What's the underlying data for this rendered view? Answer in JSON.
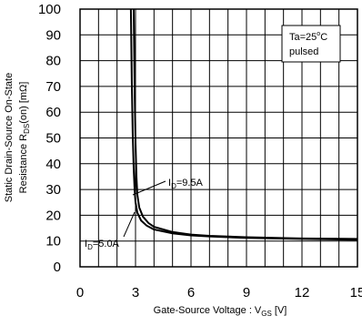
{
  "chart_data": {
    "type": "line",
    "xlabel": {
      "main": "Gate-Source Voltage : V",
      "sub": "GS",
      "unit": " [V]"
    },
    "ylabel": {
      "line1": "Static Drain-Source On-State",
      "line2_main": "Resistance   R",
      "line2_sub": "DS",
      "line2_rest": "(on) [mΩ]"
    },
    "xlim": [
      0,
      15
    ],
    "ylim": [
      0,
      100
    ],
    "x_ticks": [
      "0",
      "3",
      "6",
      "9",
      "12",
      "15"
    ],
    "y_ticks": [
      "0",
      "10",
      "20",
      "30",
      "40",
      "50",
      "60",
      "70",
      "80",
      "90",
      "100"
    ],
    "x_tick_values": [
      0,
      3,
      6,
      9,
      12,
      15
    ],
    "y_tick_values": [
      0,
      10,
      20,
      30,
      40,
      50,
      60,
      70,
      80,
      90,
      100
    ],
    "grid": true,
    "conditions": {
      "line1_main": "Ta=25",
      "line1_sup": "o",
      "line1_rest": "C",
      "line2": "pulsed"
    },
    "series": [
      {
        "points": [
          [
            2.75,
            100
          ],
          [
            2.8,
            72
          ],
          [
            2.85,
            52
          ],
          [
            2.9,
            38
          ],
          [
            2.95,
            30
          ],
          [
            3.0,
            25
          ],
          [
            3.1,
            21
          ],
          [
            3.3,
            18
          ],
          [
            3.6,
            16
          ],
          [
            4.0,
            14.5
          ],
          [
            5.0,
            13
          ],
          [
            6.0,
            12.2
          ],
          [
            7.0,
            11.8
          ],
          [
            9.0,
            11.2
          ],
          [
            12.0,
            10.8
          ],
          [
            15.0,
            10.5
          ]
        ],
        "label": {
          "main": "I",
          "sub": "D",
          "rest": "=9.5A"
        }
      },
      {
        "points": [
          [
            2.9,
            100
          ],
          [
            2.95,
            70
          ],
          [
            3.0,
            48
          ],
          [
            3.05,
            35
          ],
          [
            3.1,
            28
          ],
          [
            3.2,
            23
          ],
          [
            3.4,
            19.5
          ],
          [
            3.7,
            17
          ],
          [
            4.0,
            15.5
          ],
          [
            5.0,
            13.5
          ],
          [
            6.0,
            12.5
          ],
          [
            7.0,
            12
          ],
          [
            9.0,
            11.5
          ],
          [
            12.0,
            11
          ],
          [
            15.0,
            10.8
          ]
        ],
        "label": {
          "main": "I",
          "sub": "D",
          "rest": "=5.0A"
        }
      }
    ]
  }
}
